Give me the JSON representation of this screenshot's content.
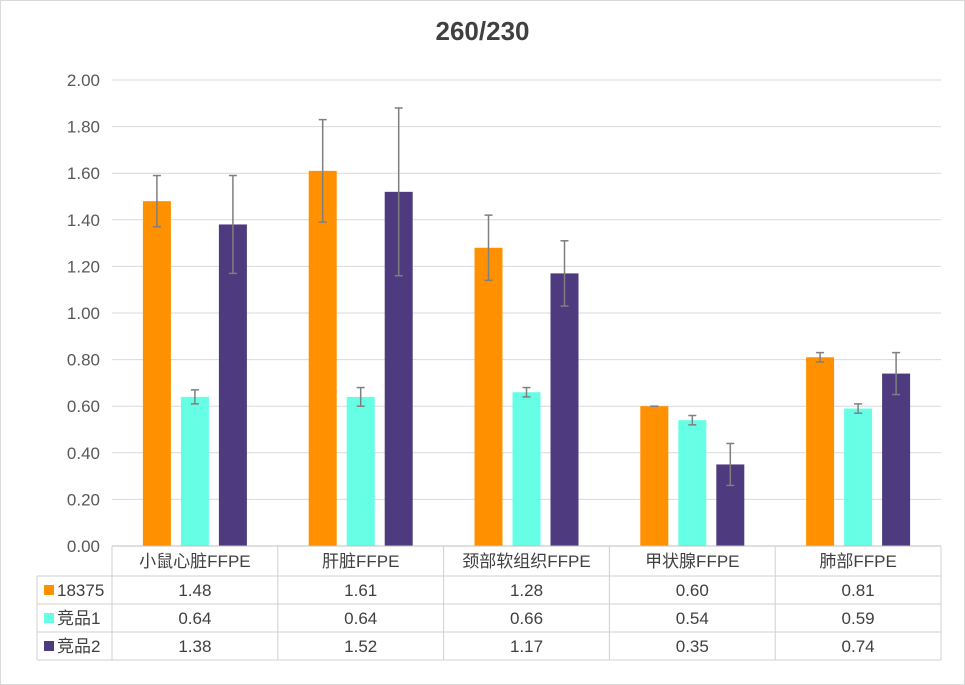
{
  "chart_data": {
    "type": "bar",
    "title": "260/230",
    "categories": [
      "小鼠心脏FFPE",
      "肝脏FFPE",
      "颈部软组织FFPE",
      "甲状腺FFPE",
      "肺部FFPE"
    ],
    "series": [
      {
        "name": "18375",
        "color": "#ff9100",
        "values": [
          1.48,
          1.61,
          1.28,
          0.6,
          0.81
        ],
        "errors": [
          0.11,
          0.22,
          0.14,
          0.0,
          0.02
        ],
        "labels": [
          "1.48",
          "1.61",
          "1.28",
          "0.60",
          "0.81"
        ]
      },
      {
        "name": "竞品1",
        "color": "#66ffe6",
        "values": [
          0.64,
          0.64,
          0.66,
          0.54,
          0.59
        ],
        "errors": [
          0.03,
          0.04,
          0.02,
          0.02,
          0.02
        ],
        "labels": [
          "0.64",
          "0.64",
          "0.66",
          "0.54",
          "0.59"
        ]
      },
      {
        "name": "竞品2",
        "color": "#4e3a7e",
        "values": [
          1.38,
          1.52,
          1.17,
          0.35,
          0.74
        ],
        "errors": [
          0.21,
          0.36,
          0.14,
          0.09,
          0.09
        ],
        "labels": [
          "1.38",
          "1.52",
          "1.17",
          "0.35",
          "0.74"
        ]
      }
    ],
    "ylim": [
      0,
      2.0
    ],
    "yticks": [
      "0.00",
      "0.20",
      "0.40",
      "0.60",
      "0.80",
      "1.00",
      "1.20",
      "1.40",
      "1.60",
      "1.80",
      "2.00"
    ],
    "grid": true,
    "legend": "data-table"
  }
}
